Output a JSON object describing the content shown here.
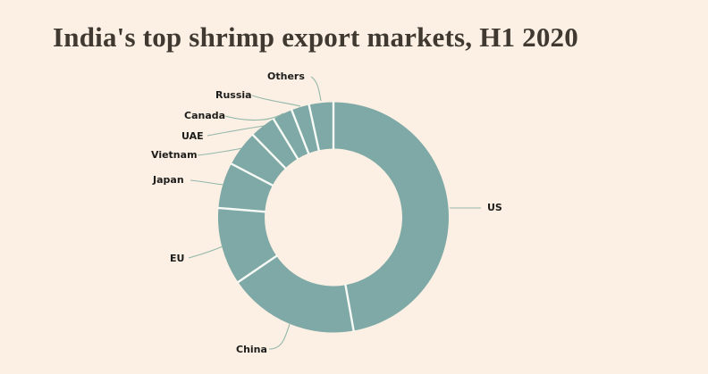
{
  "title": "India's top shrimp export markets, H1 2020",
  "colors": {
    "background": "#fbf0e3",
    "segment": "#7ea9a6",
    "separator": "#f7faf5",
    "leader_line": "#93b7ab",
    "label_text": "#1d1d1b",
    "title_text": "#3f3931"
  },
  "chart_data": {
    "type": "pie",
    "subtype": "donut",
    "title": "India's top shrimp export markets, H1 2020",
    "value_unit": "percent share (estimated from arc angles)",
    "start_angle_deg": 0,
    "direction": "clockwise",
    "single_hue": true,
    "legend_position": "outside-labels-with-leader-lines",
    "segments": [
      {
        "label": "US",
        "value_pct": 47.2
      },
      {
        "label": "China",
        "value_pct": 18.3
      },
      {
        "label": "EU",
        "value_pct": 10.8
      },
      {
        "label": "Japan",
        "value_pct": 6.4
      },
      {
        "label": "Vietnam",
        "value_pct": 5.0
      },
      {
        "label": "UAE",
        "value_pct": 3.6
      },
      {
        "label": "Canada",
        "value_pct": 2.8
      },
      {
        "label": "Russia",
        "value_pct": 2.5
      },
      {
        "label": "Others",
        "value_pct": 3.4
      }
    ]
  }
}
